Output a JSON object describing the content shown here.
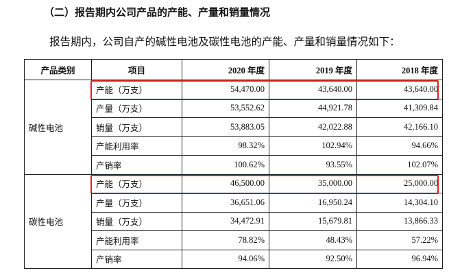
{
  "heading": "（二）报告期内公司产品的产能、产量和销量情况",
  "paragraph": "报告期内，公司自产的碱性电池及碳性电池的产能、产量和销量情况如下：",
  "table": {
    "header": [
      "产品类别",
      "项目",
      "2020 年度",
      "2019 年度",
      "2018 年度"
    ],
    "groups": [
      {
        "category": "碱性电池",
        "rows": [
          [
            "产能（万支）",
            "54,470.00",
            "43,640.00",
            "43,640.00"
          ],
          [
            "产量（万支）",
            "53,552.62",
            "44,921.78",
            "41,309.84"
          ],
          [
            "销量（万支）",
            "53,883.05",
            "42,022.88",
            "42,166.10"
          ],
          [
            "产能利用率",
            "98.32%",
            "102.94%",
            "94.66%"
          ],
          [
            "产销率",
            "100.62%",
            "93.55%",
            "102.07%"
          ]
        ]
      },
      {
        "category": "碳性电池",
        "rows": [
          [
            "产能（万支）",
            "46,500.00",
            "35,000.00",
            "25,000.00"
          ],
          [
            "产量（万支）",
            "36,651.06",
            "16,950.24",
            "14,304.10"
          ],
          [
            "销量（万支）",
            "34,472.91",
            "15,679.81",
            "13,866.33"
          ],
          [
            "产能利用率",
            "78.82%",
            "48.43%",
            "57.22%"
          ],
          [
            "产销率",
            "94.06%",
            "92.50%",
            "96.94%"
          ]
        ]
      }
    ]
  }
}
